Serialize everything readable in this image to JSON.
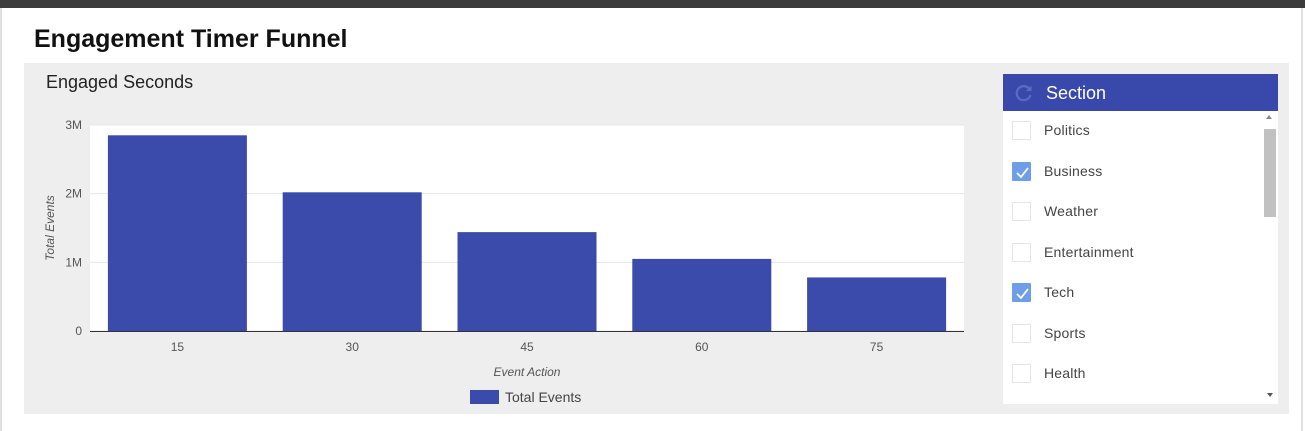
{
  "page": {
    "title": "Engagement Timer Funnel"
  },
  "chart_data": {
    "type": "bar",
    "title": "Engaged Seconds",
    "xlabel": "Event Action",
    "ylabel": "Total Events",
    "categories": [
      "15",
      "30",
      "45",
      "60",
      "75"
    ],
    "series": [
      {
        "name": "Total Events",
        "values": [
          2850000,
          2020000,
          1440000,
          1050000,
          780000
        ]
      }
    ],
    "ylim": [
      0,
      3000000
    ],
    "yticks": [
      {
        "value": 0,
        "label": "0"
      },
      {
        "value": 1000000,
        "label": "1M"
      },
      {
        "value": 2000000,
        "label": "2M"
      },
      {
        "value": 3000000,
        "label": "3M"
      }
    ],
    "legend_position": "bottom",
    "bar_color": "#3b4bab",
    "grid": true
  },
  "filter": {
    "title": "Section",
    "header_color": "#3949ab",
    "items": [
      {
        "label": "Politics",
        "checked": false
      },
      {
        "label": "Business",
        "checked": true
      },
      {
        "label": "Weather",
        "checked": false
      },
      {
        "label": "Entertainment",
        "checked": false
      },
      {
        "label": "Tech",
        "checked": true
      },
      {
        "label": "Sports",
        "checked": false
      },
      {
        "label": "Health",
        "checked": false
      }
    ]
  }
}
